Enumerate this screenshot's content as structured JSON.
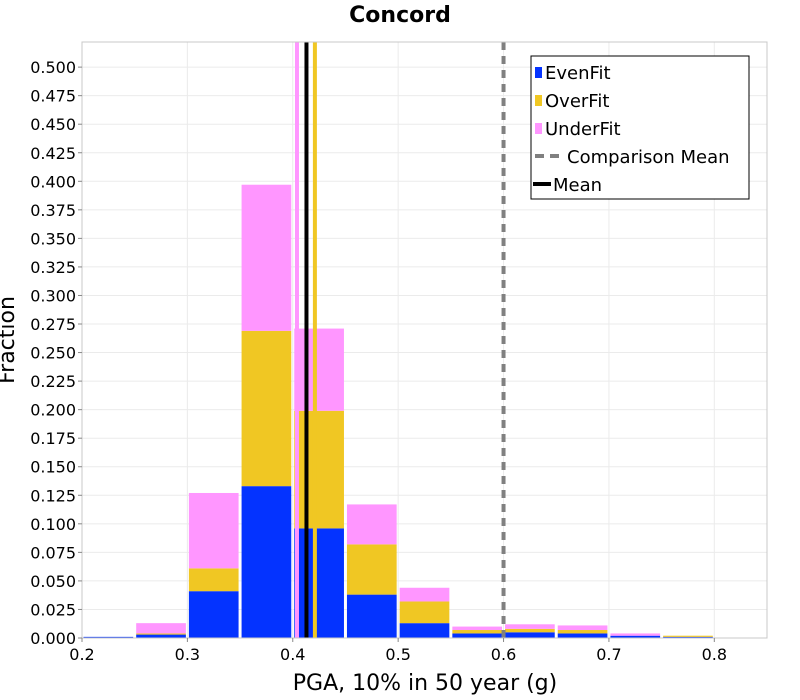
{
  "chart_data": {
    "type": "bar",
    "stacked": true,
    "title": "Concord",
    "xlabel": "PGA, 10% in 50 year (g)",
    "ylabel": "Fraction",
    "xlim": [
      0.2,
      0.85
    ],
    "ylim": [
      0.0,
      0.522
    ],
    "x_ticks": [
      "0.2",
      "0.3",
      "0.4",
      "0.5",
      "0.6",
      "0.7",
      "0.8"
    ],
    "y_ticks": [
      "0.000",
      "0.025",
      "0.050",
      "0.075",
      "0.100",
      "0.125",
      "0.150",
      "0.175",
      "0.200",
      "0.225",
      "0.250",
      "0.275",
      "0.300",
      "0.325",
      "0.350",
      "0.375",
      "0.400",
      "0.425",
      "0.450",
      "0.475",
      "0.500"
    ],
    "bin_width": 0.05,
    "bin_centers": [
      0.225,
      0.275,
      0.325,
      0.375,
      0.425,
      0.475,
      0.525,
      0.575,
      0.625,
      0.675,
      0.725,
      0.775
    ],
    "series": [
      {
        "name": "EvenFit",
        "color": "#0433ff",
        "values": [
          0.001,
          0.003,
          0.041,
          0.133,
          0.096,
          0.038,
          0.013,
          0.004,
          0.005,
          0.004,
          0.002,
          0.001
        ]
      },
      {
        "name": "OverFit",
        "color": "#f0c723",
        "values": [
          0.0,
          0.001,
          0.02,
          0.136,
          0.103,
          0.044,
          0.019,
          0.003,
          0.003,
          0.003,
          0.0,
          0.001
        ]
      },
      {
        "name": "UnderFit",
        "color": "#ff96ff",
        "values": [
          0.0,
          0.009,
          0.066,
          0.128,
          0.072,
          0.035,
          0.012,
          0.003,
          0.004,
          0.004,
          0.002,
          0.0
        ]
      }
    ],
    "mean_lines": [
      {
        "series": "UnderFit",
        "x": 0.404,
        "color": "#ff96ff"
      },
      {
        "series": "Mean",
        "x": 0.413,
        "color": "#000000"
      },
      {
        "series": "OverFit",
        "x": 0.421,
        "color": "#f0c723"
      }
    ],
    "comparison_mean": {
      "x": 0.6,
      "color": "#808080"
    },
    "legend": {
      "position": "top-right",
      "entries": [
        {
          "label": "EvenFit",
          "kind": "patch",
          "color": "#0433ff"
        },
        {
          "label": "OverFit",
          "kind": "patch",
          "color": "#f0c723"
        },
        {
          "label": "UnderFit",
          "kind": "patch",
          "color": "#ff96ff"
        },
        {
          "label": "Comparison Mean",
          "kind": "dashed",
          "color": "#808080"
        },
        {
          "label": "Mean",
          "kind": "line",
          "color": "#000000"
        }
      ]
    }
  }
}
